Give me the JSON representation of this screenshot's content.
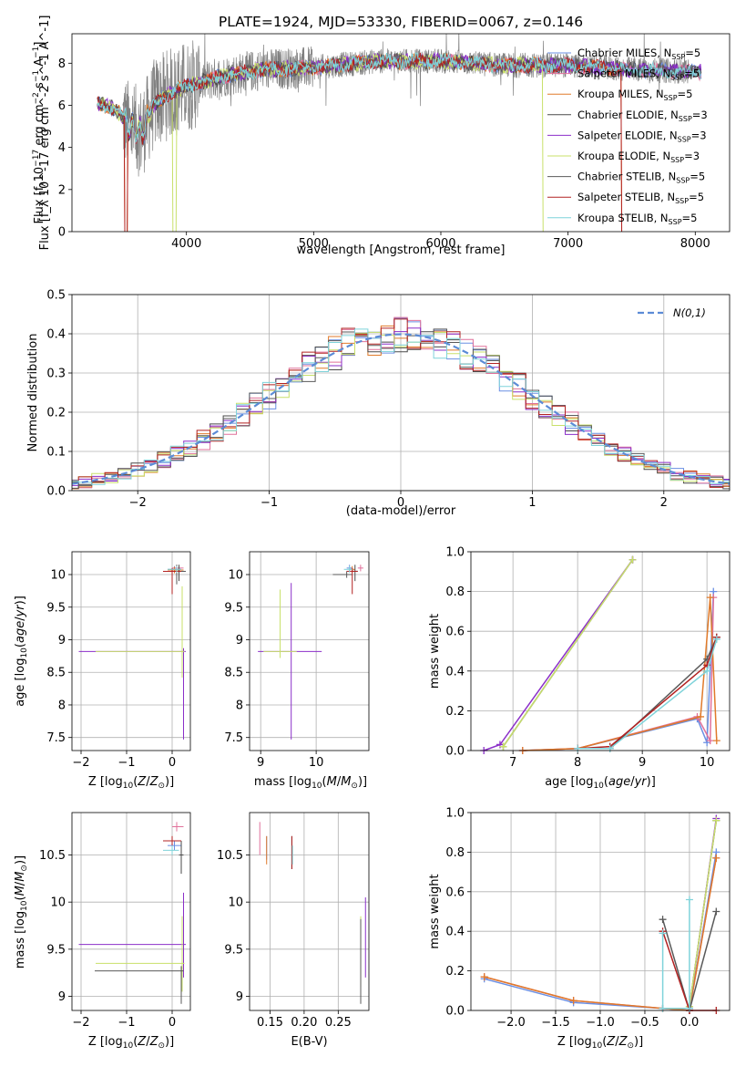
{
  "title": "PLATE=1924, MJD=53330, FIBERID=0067, z=0.146",
  "colors": {
    "Chabrier MILES": "#6a8fe3",
    "Salpeter MILES": "#e0709a",
    "Kroupa MILES": "#e07a2a",
    "Chabrier ELODIE": "#4a4a4a",
    "Salpeter ELODIE": "#8b2fc9",
    "Kroupa ELODIE": "#c8e06a",
    "Chabrier STELIB": "#595959",
    "Salpeter STELIB": "#b22222",
    "Kroupa STELIB": "#7fd3da",
    "data": "#808080",
    "normal": "#5b8bd6"
  },
  "chart_data": [
    {
      "id": "spectrum",
      "type": "line",
      "xlabel": "wavelength [Angstrom, rest frame]",
      "ylabel": "Flux [f_λ 10^-17 erg cm^-2 s^-1 A^-1]",
      "xlim": [
        3100,
        8270
      ],
      "ylim": [
        0,
        9.4
      ],
      "xticks": [
        4000,
        5000,
        6000,
        7000,
        8000
      ],
      "yticks": [
        0,
        2,
        4,
        6,
        8
      ],
      "legend": {
        "placement": "top-right",
        "entries": [
          "Chabrier MILES, N_SSP=5",
          "Salpeter MILES, N_SSP=5",
          "Kroupa MILES, N_SSP=5",
          "Chabrier ELODIE, N_SSP=3",
          "Salpeter ELODIE, N_SSP=3",
          "Kroupa ELODIE, N_SSP=3",
          "Chabrier STELIB, N_SSP=5",
          "Salpeter STELIB, N_SSP=5",
          "Kroupa STELIB, N_SSP=5"
        ]
      },
      "continuum": [
        [
          3300,
          6.1
        ],
        [
          3450,
          5.8
        ],
        [
          3550,
          5.0
        ],
        [
          3650,
          4.7
        ],
        [
          3750,
          6.1
        ],
        [
          3850,
          6.5
        ],
        [
          4000,
          6.9
        ],
        [
          4300,
          7.4
        ],
        [
          4600,
          7.7
        ],
        [
          5000,
          7.8
        ],
        [
          5500,
          8.1
        ],
        [
          6000,
          8.1
        ],
        [
          6500,
          7.9
        ],
        [
          7000,
          7.9
        ],
        [
          7500,
          7.7
        ],
        [
          8000,
          7.6
        ]
      ],
      "model_range": [
        3300,
        8050
      ],
      "data_range": [
        3500,
        7950
      ],
      "model_cutoffs": [
        {
          "series": "Salpeter STELIB",
          "x": [
            3540,
            7420
          ]
        },
        {
          "series": "Kroupa ELODIE",
          "x": [
            3920,
            6800
          ]
        },
        {
          "series": "Kroupa MILES",
          "x": [
            3540,
            7420
          ]
        }
      ]
    },
    {
      "id": "residuals",
      "type": "histogram",
      "xlabel": "(data-model)/error",
      "ylabel": "Normed distribution",
      "xlim": [
        -2.5,
        2.5
      ],
      "ylim": [
        0,
        0.5
      ],
      "xticks": [
        -2,
        -1,
        0,
        1,
        2
      ],
      "yticks": [
        0.0,
        0.1,
        0.2,
        0.3,
        0.4,
        0.5
      ],
      "bin_width": 0.1,
      "legend": {
        "placement": "top-right",
        "entries": [
          "N(0,1)"
        ]
      },
      "reference_curve": "N(0,1)"
    },
    {
      "id": "age-vs-Z",
      "type": "errorbar",
      "xlabel": "Z [log10(Z/Z_sun)]",
      "ylabel": "age [log10(age/yr)]",
      "xlim": [
        -2.2,
        0.4
      ],
      "ylim": [
        7.3,
        10.35
      ],
      "xticks": [
        -2,
        -1,
        0
      ],
      "yticks": [
        7.5,
        8.0,
        8.5,
        9.0,
        9.5,
        10.0
      ],
      "points": [
        {
          "series": "Chabrier MILES",
          "x": 0.05,
          "y": 10.08,
          "xerr": [
            0.15,
            0.15
          ],
          "yerr": [
            0.05,
            0.05
          ]
        },
        {
          "series": "Salpeter MILES",
          "x": 0.1,
          "y": 10.1,
          "xerr": [
            0.1,
            0.15
          ],
          "yerr": [
            0.05,
            0.05
          ]
        },
        {
          "series": "Kroupa MILES",
          "x": 0.05,
          "y": 10.07,
          "xerr": [
            0.15,
            0.2
          ],
          "yerr": [
            0.05,
            0.05
          ]
        },
        {
          "series": "Chabrier ELODIE",
          "x": 0.15,
          "y": 10.05,
          "xerr": [
            0.1,
            0.1
          ],
          "yerr": [
            0.15,
            0.1
          ]
        },
        {
          "series": "Salpeter ELODIE",
          "x": 0.25,
          "y": 8.82,
          "xerr": [
            2.3,
            0.05
          ],
          "yerr": [
            1.35,
            0.05
          ]
        },
        {
          "series": "Kroupa ELODIE",
          "x": 0.22,
          "y": 8.82,
          "xerr": [
            1.9,
            0.05
          ],
          "yerr": [
            0.4,
            1.0
          ]
        },
        {
          "series": "Chabrier STELIB",
          "x": 0.1,
          "y": 10.05,
          "xerr": [
            0.2,
            0.2
          ],
          "yerr": [
            0.2,
            0.1
          ]
        },
        {
          "series": "Salpeter STELIB",
          "x": 0.0,
          "y": 10.05,
          "xerr": [
            0.2,
            0.2
          ],
          "yerr": [
            0.35,
            0.05
          ]
        },
        {
          "series": "Kroupa STELIB",
          "x": 0.1,
          "y": 10.08,
          "xerr": [
            0.2,
            0.1
          ],
          "yerr": [
            0.05,
            0.05
          ]
        }
      ]
    },
    {
      "id": "age-vs-mass",
      "type": "errorbar",
      "xlabel": "mass [log10(M/M_sun)]",
      "ylabel": "",
      "xlim": [
        8.8,
        10.95
      ],
      "ylim": [
        7.3,
        10.35
      ],
      "xticks": [
        9,
        10
      ],
      "yticks": [
        7.5,
        8.0,
        8.5,
        9.0,
        9.5,
        10.0
      ],
      "points": [
        {
          "series": "Chabrier MILES",
          "x": 10.6,
          "y": 10.1,
          "xerr": [
            0.05,
            0.05
          ],
          "yerr": [
            0.05,
            0.05
          ]
        },
        {
          "series": "Salpeter MILES",
          "x": 10.8,
          "y": 10.1,
          "xerr": [
            0.05,
            0.05
          ],
          "yerr": [
            0.05,
            0.05
          ]
        },
        {
          "series": "Kroupa MILES",
          "x": 10.65,
          "y": 10.08,
          "xerr": [
            0.05,
            0.05
          ],
          "yerr": [
            0.05,
            0.05
          ]
        },
        {
          "series": "Chabrier ELODIE",
          "x": 10.7,
          "y": 10.05,
          "xerr": [
            0.05,
            0.05
          ],
          "yerr": [
            0.15,
            0.1
          ]
        },
        {
          "series": "Salpeter ELODIE",
          "x": 9.55,
          "y": 8.82,
          "xerr": [
            0.6,
            0.55
          ],
          "yerr": [
            1.35,
            1.05
          ]
        },
        {
          "series": "Kroupa ELODIE",
          "x": 9.35,
          "y": 8.82,
          "xerr": [
            0.3,
            0.3
          ],
          "yerr": [
            0.1,
            0.95
          ]
        },
        {
          "series": "Chabrier STELIB",
          "x": 10.55,
          "y": 10.0,
          "xerr": [
            0.25,
            0.1
          ],
          "yerr": [
            0.05,
            0.05
          ]
        },
        {
          "series": "Salpeter STELIB",
          "x": 10.65,
          "y": 10.05,
          "xerr": [
            0.1,
            0.1
          ],
          "yerr": [
            0.35,
            0.05
          ]
        },
        {
          "series": "Kroupa STELIB",
          "x": 10.6,
          "y": 10.08,
          "xerr": [
            0.1,
            0.05
          ],
          "yerr": [
            0.05,
            0.05
          ]
        }
      ]
    },
    {
      "id": "weight-vs-age",
      "type": "line",
      "xlabel": "age [log10(age/yr)]",
      "ylabel": "mass weight",
      "xlim": [
        6.35,
        10.35
      ],
      "ylim": [
        0,
        1.0
      ],
      "xticks": [
        7,
        8,
        9,
        10
      ],
      "yticks": [
        0.0,
        0.2,
        0.4,
        0.6,
        0.8,
        1.0
      ],
      "series": [
        {
          "name": "Chabrier MILES",
          "x": [
            7.15,
            8.0,
            9.85,
            10.0,
            10.1
          ],
          "y": [
            0.0,
            0.01,
            0.16,
            0.04,
            0.8
          ]
        },
        {
          "name": "Salpeter MILES",
          "x": [
            7.15,
            8.0,
            9.85,
            10.05,
            10.1
          ],
          "y": [
            0.0,
            0.01,
            0.17,
            0.05,
            0.77
          ]
        },
        {
          "name": "Kroupa MILES",
          "x": [
            7.15,
            8.0,
            9.9,
            10.05,
            10.15
          ],
          "y": [
            0.0,
            0.01,
            0.17,
            0.77,
            0.05
          ]
        },
        {
          "name": "Chabrier ELODIE",
          "x": [
            6.85,
            8.85
          ],
          "y": [
            0.02,
            0.96
          ]
        },
        {
          "name": "Salpeter ELODIE",
          "x": [
            6.55,
            6.8,
            8.85
          ],
          "y": [
            0.0,
            0.03,
            0.96
          ]
        },
        {
          "name": "Kroupa ELODIE",
          "x": [
            6.85,
            8.85
          ],
          "y": [
            0.02,
            0.96
          ]
        },
        {
          "name": "Chabrier STELIB",
          "x": [
            8.0,
            8.5,
            10.0,
            10.15
          ],
          "y": [
            0.01,
            0.01,
            0.46,
            0.57
          ]
        },
        {
          "name": "Salpeter STELIB",
          "x": [
            8.0,
            8.5,
            10.0,
            10.15
          ],
          "y": [
            0.01,
            0.02,
            0.43,
            0.57
          ]
        },
        {
          "name": "Kroupa STELIB",
          "x": [
            8.0,
            8.5,
            10.0,
            10.15
          ],
          "y": [
            0.01,
            0.01,
            0.4,
            0.56
          ]
        }
      ]
    },
    {
      "id": "mass-vs-Z",
      "type": "errorbar",
      "xlabel": "Z [log10(Z/Z_sun)]",
      "ylabel": "mass [log10(M/M_sun)]",
      "xlim": [
        -2.2,
        0.4
      ],
      "ylim": [
        8.85,
        10.95
      ],
      "xticks": [
        -2,
        -1,
        0
      ],
      "yticks": [
        9.0,
        9.5,
        10.0,
        10.5
      ],
      "points": [
        {
          "series": "Chabrier MILES",
          "x": 0.05,
          "y": 10.6,
          "xerr": [
            0.15,
            0.15
          ],
          "yerr": [
            0.05,
            0.05
          ]
        },
        {
          "series": "Salpeter MILES",
          "x": 0.1,
          "y": 10.8,
          "xerr": [
            0.1,
            0.15
          ],
          "yerr": [
            0.05,
            0.05
          ]
        },
        {
          "series": "Kroupa MILES",
          "x": 0.0,
          "y": 10.65,
          "xerr": [
            0.15,
            0.2
          ],
          "yerr": [
            0.05,
            0.05
          ]
        },
        {
          "series": "Chabrier ELODIE",
          "x": 0.2,
          "y": 10.5,
          "xerr": [
            0.05,
            0.05
          ],
          "yerr": [
            0.2,
            0.15
          ]
        },
        {
          "series": "Salpeter ELODIE",
          "x": 0.25,
          "y": 9.55,
          "xerr": [
            2.3,
            0.05
          ],
          "yerr": [
            0.35,
            0.55
          ]
        },
        {
          "series": "Kroupa ELODIE",
          "x": 0.22,
          "y": 9.35,
          "xerr": [
            1.9,
            0.05
          ],
          "yerr": [
            0.3,
            0.5
          ]
        },
        {
          "series": "Chabrier STELIB",
          "x": 0.2,
          "y": 9.27,
          "xerr": [
            1.9,
            0.05
          ],
          "yerr": [
            0.35,
            0.05
          ]
        },
        {
          "series": "Salpeter STELIB",
          "x": 0.0,
          "y": 10.65,
          "xerr": [
            0.2,
            0.2
          ],
          "yerr": [
            0.05,
            0.05
          ]
        },
        {
          "series": "Kroupa STELIB",
          "x": 0.0,
          "y": 10.55,
          "xerr": [
            0.2,
            0.15
          ],
          "yerr": [
            0.05,
            0.05
          ]
        }
      ]
    },
    {
      "id": "mass-vs-EBV",
      "type": "errorbar",
      "xlabel": "E(B-V)",
      "ylabel": "",
      "xlim": [
        0.12,
        0.295
      ],
      "ylim": [
        8.85,
        10.95
      ],
      "xticks": [
        0.15,
        0.2,
        0.25
      ],
      "xtick_labels": [
        "0.15",
        "0.20",
        "0.25"
      ],
      "yticks": [
        9.0,
        9.5,
        10.0,
        10.5
      ],
      "points": [
        {
          "series": "Chabrier MILES",
          "x": 0.145,
          "y": 10.6,
          "yerr": [
            0.15,
            0.1
          ]
        },
        {
          "series": "Salpeter MILES",
          "x": 0.135,
          "y": 10.65,
          "yerr": [
            0.15,
            0.2
          ]
        },
        {
          "series": "Kroupa MILES",
          "x": 0.145,
          "y": 10.55,
          "yerr": [
            0.15,
            0.15
          ]
        },
        {
          "series": "Chabrier ELODIE",
          "x": 0.182,
          "y": 10.45,
          "yerr": [
            0.1,
            0.25
          ]
        },
        {
          "series": "Salpeter ELODIE",
          "x": 0.29,
          "y": 9.55,
          "yerr": [
            0.35,
            0.5
          ]
        },
        {
          "series": "Kroupa ELODIE",
          "x": 0.283,
          "y": 9.35,
          "yerr": [
            0.25,
            0.5
          ]
        },
        {
          "series": "Chabrier STELIB",
          "x": 0.283,
          "y": 9.27,
          "yerr": [
            0.35,
            0.55
          ]
        },
        {
          "series": "Salpeter STELIB",
          "x": 0.182,
          "y": 10.5,
          "yerr": [
            0.15,
            0.2
          ]
        },
        {
          "series": "Kroupa STELIB",
          "x": 0.183,
          "y": 10.45,
          "yerr": [
            0.05,
            0.15
          ]
        }
      ]
    },
    {
      "id": "weight-vs-Z",
      "type": "line",
      "xlabel": "Z [log10(Z/Z_sun)]",
      "ylabel": "mass weight",
      "xlim": [
        -2.45,
        0.45
      ],
      "ylim": [
        0,
        1.0
      ],
      "xticks": [
        -2.0,
        -1.5,
        -1.0,
        -0.5,
        0.0
      ],
      "yticks": [
        0.0,
        0.2,
        0.4,
        0.6,
        0.8,
        1.0
      ],
      "series": [
        {
          "name": "Chabrier MILES",
          "x": [
            -2.3,
            -1.3,
            -0.3,
            0.0,
            0.3
          ],
          "y": [
            0.16,
            0.04,
            0.01,
            0.0,
            0.8
          ]
        },
        {
          "name": "Salpeter MILES",
          "x": [
            -2.3,
            -1.3,
            -0.3,
            0.0,
            0.3
          ],
          "y": [
            0.17,
            0.05,
            0.01,
            0.0,
            0.77
          ]
        },
        {
          "name": "Kroupa MILES",
          "x": [
            -2.3,
            -1.3,
            -0.3,
            0.0,
            0.3
          ],
          "y": [
            0.17,
            0.05,
            0.01,
            0.0,
            0.77
          ]
        },
        {
          "name": "Chabrier ELODIE",
          "x": [
            0.0,
            0.3
          ],
          "y": [
            0.02,
            0.96
          ]
        },
        {
          "name": "Salpeter ELODIE",
          "x": [
            0.0,
            0.3
          ],
          "y": [
            0.01,
            0.97
          ]
        },
        {
          "name": "Kroupa ELODIE",
          "x": [
            0.0,
            0.3
          ],
          "y": [
            0.02,
            0.96
          ]
        },
        {
          "name": "Chabrier STELIB",
          "x": [
            -0.3,
            0.0,
            0.3
          ],
          "y": [
            0.46,
            0.0,
            0.5
          ]
        },
        {
          "name": "Salpeter STELIB",
          "x": [
            -0.3,
            0.0,
            0.3
          ],
          "y": [
            0.4,
            0.0,
            0.0
          ]
        },
        {
          "name": "Kroupa STELIB",
          "x": [
            -0.3,
            -0.3,
            0.0,
            0.0
          ],
          "y": [
            0.39,
            0.01,
            0.01,
            0.56
          ]
        }
      ]
    }
  ]
}
